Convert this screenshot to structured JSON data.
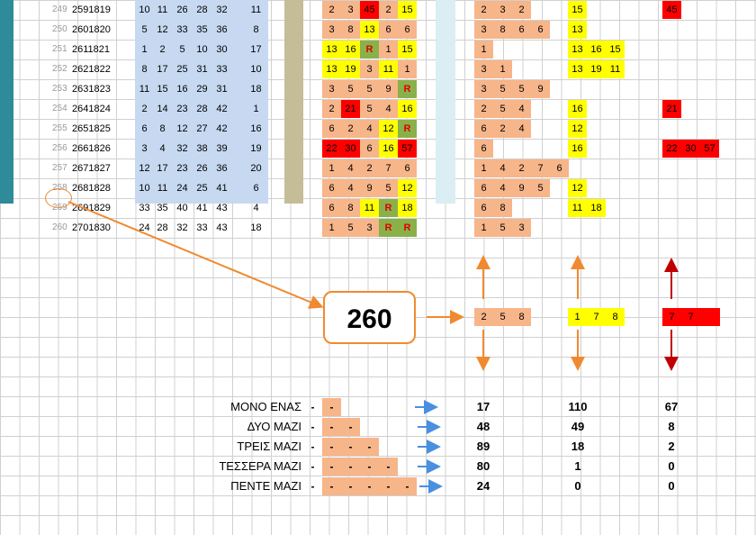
{
  "rows": [
    {
      "n": "249",
      "id": "2591819",
      "nums": [
        "10",
        "11",
        "26",
        "28",
        "32"
      ],
      "cnt": "11",
      "mid": [
        {
          "v": "2",
          "c": "salmon"
        },
        {
          "v": "3",
          "c": "salmon"
        },
        {
          "v": "45",
          "c": "red"
        },
        {
          "v": "2",
          "c": "salmon"
        },
        {
          "v": "15",
          "c": "yellow"
        }
      ],
      "r1": [
        {
          "v": "2",
          "c": "salmon"
        },
        {
          "v": "3",
          "c": "salmon"
        },
        {
          "v": "2",
          "c": "salmon"
        }
      ],
      "r2": [
        {
          "v": "15",
          "c": "yellow"
        }
      ],
      "r3": [
        {
          "v": "45",
          "c": "red"
        }
      ]
    },
    {
      "n": "250",
      "id": "2601820",
      "nums": [
        "5",
        "12",
        "33",
        "35",
        "36"
      ],
      "cnt": "8",
      "mid": [
        {
          "v": "3",
          "c": "salmon"
        },
        {
          "v": "8",
          "c": "salmon"
        },
        {
          "v": "13",
          "c": "yellow"
        },
        {
          "v": "6",
          "c": "salmon"
        },
        {
          "v": "6",
          "c": "salmon"
        }
      ],
      "r1": [
        {
          "v": "3",
          "c": "salmon"
        },
        {
          "v": "8",
          "c": "salmon"
        },
        {
          "v": "6",
          "c": "salmon"
        },
        {
          "v": "6",
          "c": "salmon"
        }
      ],
      "r2": [
        {
          "v": "13",
          "c": "yellow"
        }
      ],
      "r3": []
    },
    {
      "n": "251",
      "id": "2611821",
      "nums": [
        "1",
        "2",
        "5",
        "10",
        "30"
      ],
      "cnt": "17",
      "mid": [
        {
          "v": "13",
          "c": "yellow"
        },
        {
          "v": "16",
          "c": "yellow"
        },
        {
          "v": "R",
          "c": "green"
        },
        {
          "v": "1",
          "c": "salmon"
        },
        {
          "v": "15",
          "c": "yellow"
        }
      ],
      "r1": [
        {
          "v": "1",
          "c": "salmon"
        }
      ],
      "r2": [
        {
          "v": "13",
          "c": "yellow"
        },
        {
          "v": "16",
          "c": "yellow"
        },
        {
          "v": "15",
          "c": "yellow"
        }
      ],
      "r3": []
    },
    {
      "n": "252",
      "id": "2621822",
      "nums": [
        "8",
        "17",
        "25",
        "31",
        "33"
      ],
      "cnt": "10",
      "mid": [
        {
          "v": "13",
          "c": "yellow"
        },
        {
          "v": "19",
          "c": "yellow"
        },
        {
          "v": "3",
          "c": "salmon"
        },
        {
          "v": "11",
          "c": "yellow"
        },
        {
          "v": "1",
          "c": "salmon"
        }
      ],
      "r1": [
        {
          "v": "3",
          "c": "salmon"
        },
        {
          "v": "1",
          "c": "salmon"
        }
      ],
      "r2": [
        {
          "v": "13",
          "c": "yellow"
        },
        {
          "v": "19",
          "c": "yellow"
        },
        {
          "v": "11",
          "c": "yellow"
        }
      ],
      "r3": []
    },
    {
      "n": "253",
      "id": "2631823",
      "nums": [
        "11",
        "15",
        "16",
        "29",
        "31"
      ],
      "cnt": "18",
      "mid": [
        {
          "v": "3",
          "c": "salmon"
        },
        {
          "v": "5",
          "c": "salmon"
        },
        {
          "v": "5",
          "c": "salmon"
        },
        {
          "v": "9",
          "c": "salmon"
        },
        {
          "v": "R",
          "c": "green"
        }
      ],
      "r1": [
        {
          "v": "3",
          "c": "salmon"
        },
        {
          "v": "5",
          "c": "salmon"
        },
        {
          "v": "5",
          "c": "salmon"
        },
        {
          "v": "9",
          "c": "salmon"
        }
      ],
      "r2": [],
      "r3": []
    },
    {
      "n": "254",
      "id": "2641824",
      "nums": [
        "2",
        "14",
        "23",
        "28",
        "42"
      ],
      "cnt": "1",
      "mid": [
        {
          "v": "2",
          "c": "salmon"
        },
        {
          "v": "21",
          "c": "red"
        },
        {
          "v": "5",
          "c": "salmon"
        },
        {
          "v": "4",
          "c": "salmon"
        },
        {
          "v": "16",
          "c": "yellow"
        }
      ],
      "r1": [
        {
          "v": "2",
          "c": "salmon"
        },
        {
          "v": "5",
          "c": "salmon"
        },
        {
          "v": "4",
          "c": "salmon"
        }
      ],
      "r2": [
        {
          "v": "16",
          "c": "yellow"
        }
      ],
      "r3": [
        {
          "v": "21",
          "c": "red"
        }
      ]
    },
    {
      "n": "255",
      "id": "2651825",
      "nums": [
        "6",
        "8",
        "12",
        "27",
        "42"
      ],
      "cnt": "16",
      "mid": [
        {
          "v": "6",
          "c": "salmon"
        },
        {
          "v": "2",
          "c": "salmon"
        },
        {
          "v": "4",
          "c": "salmon"
        },
        {
          "v": "12",
          "c": "yellow"
        },
        {
          "v": "R",
          "c": "green"
        }
      ],
      "r1": [
        {
          "v": "6",
          "c": "salmon"
        },
        {
          "v": "2",
          "c": "salmon"
        },
        {
          "v": "4",
          "c": "salmon"
        }
      ],
      "r2": [
        {
          "v": "12",
          "c": "yellow"
        }
      ],
      "r3": []
    },
    {
      "n": "256",
      "id": "2661826",
      "nums": [
        "3",
        "4",
        "32",
        "38",
        "39"
      ],
      "cnt": "19",
      "mid": [
        {
          "v": "22",
          "c": "red"
        },
        {
          "v": "30",
          "c": "red"
        },
        {
          "v": "6",
          "c": "salmon"
        },
        {
          "v": "16",
          "c": "yellow"
        },
        {
          "v": "57",
          "c": "red"
        }
      ],
      "r1": [
        {
          "v": "6",
          "c": "salmon"
        }
      ],
      "r2": [
        {
          "v": "16",
          "c": "yellow"
        }
      ],
      "r3": [
        {
          "v": "22",
          "c": "red"
        },
        {
          "v": "30",
          "c": "red"
        },
        {
          "v": "57",
          "c": "red"
        }
      ]
    },
    {
      "n": "257",
      "id": "2671827",
      "nums": [
        "12",
        "17",
        "23",
        "26",
        "36"
      ],
      "cnt": "20",
      "mid": [
        {
          "v": "1",
          "c": "salmon"
        },
        {
          "v": "4",
          "c": "salmon"
        },
        {
          "v": "2",
          "c": "salmon"
        },
        {
          "v": "7",
          "c": "salmon"
        },
        {
          "v": "6",
          "c": "salmon"
        }
      ],
      "r1": [
        {
          "v": "1",
          "c": "salmon"
        },
        {
          "v": "4",
          "c": "salmon"
        },
        {
          "v": "2",
          "c": "salmon"
        },
        {
          "v": "7",
          "c": "salmon"
        },
        {
          "v": "6",
          "c": "salmon"
        }
      ],
      "r2": [],
      "r3": []
    },
    {
      "n": "258",
      "id": "2681828",
      "nums": [
        "10",
        "11",
        "24",
        "25",
        "41"
      ],
      "cnt": "6",
      "mid": [
        {
          "v": "6",
          "c": "salmon"
        },
        {
          "v": "4",
          "c": "salmon"
        },
        {
          "v": "9",
          "c": "salmon"
        },
        {
          "v": "5",
          "c": "salmon"
        },
        {
          "v": "12",
          "c": "yellow"
        }
      ],
      "r1": [
        {
          "v": "6",
          "c": "salmon"
        },
        {
          "v": "4",
          "c": "salmon"
        },
        {
          "v": "9",
          "c": "salmon"
        },
        {
          "v": "5",
          "c": "salmon"
        }
      ],
      "r2": [
        {
          "v": "12",
          "c": "yellow"
        }
      ],
      "r3": []
    },
    {
      "n": "259",
      "id": "2691829",
      "nums": [
        "33",
        "35",
        "40",
        "41",
        "43"
      ],
      "cnt": "4",
      "mid": [
        {
          "v": "6",
          "c": "salmon"
        },
        {
          "v": "8",
          "c": "salmon"
        },
        {
          "v": "11",
          "c": "yellow"
        },
        {
          "v": "R",
          "c": "green"
        },
        {
          "v": "18",
          "c": "yellow"
        }
      ],
      "r1": [
        {
          "v": "6",
          "c": "salmon"
        },
        {
          "v": "8",
          "c": "salmon"
        }
      ],
      "r2": [
        {
          "v": "11",
          "c": "yellow"
        },
        {
          "v": "18",
          "c": "yellow"
        }
      ],
      "r3": []
    },
    {
      "n": "260",
      "id": "2701830",
      "nums": [
        "24",
        "28",
        "32",
        "33",
        "43"
      ],
      "cnt": "18",
      "mid": [
        {
          "v": "1",
          "c": "salmon"
        },
        {
          "v": "5",
          "c": "salmon"
        },
        {
          "v": "3",
          "c": "salmon"
        },
        {
          "v": "R",
          "c": "green"
        },
        {
          "v": "R",
          "c": "green"
        }
      ],
      "r1": [
        {
          "v": "1",
          "c": "salmon"
        },
        {
          "v": "5",
          "c": "salmon"
        },
        {
          "v": "3",
          "c": "salmon"
        }
      ],
      "r2": [],
      "r3": []
    }
  ],
  "callout": {
    "big_number": "260"
  },
  "predict": {
    "group1": [
      "2",
      "5",
      "8"
    ],
    "group2": [
      "1",
      "7",
      "8"
    ],
    "group3": [
      "7",
      "7"
    ]
  },
  "summary": [
    {
      "label": "ΜΟΝΟ ΕΝΑΣ",
      "prefix": "-",
      "dashes": 1,
      "a": "17",
      "b": "110",
      "c": "67"
    },
    {
      "label": "ΔΥΟ ΜΑΖΙ",
      "prefix": "-",
      "dashes": 2,
      "a": "48",
      "b": "49",
      "c": "8"
    },
    {
      "label": "ΤΡΕΙΣ ΜΑΖΙ",
      "prefix": "-",
      "dashes": 3,
      "a": "89",
      "b": "18",
      "c": "2"
    },
    {
      "label": "ΤΕΣΣΕΡΑ ΜΑΖΙ",
      "prefix": "-",
      "dashes": 4,
      "a": "80",
      "b": "1",
      "c": "0"
    },
    {
      "label": "ΠΕΝΤΕ ΜΑΖΙ",
      "prefix": "-",
      "dashes": 5,
      "a": "24",
      "b": "0",
      "c": "0"
    }
  ],
  "colors": {
    "teal": "#2f8a9a",
    "blue_band": "#c6d9f1",
    "khaki": "#c4bd97",
    "light_cyan": "#daeef3",
    "salmon": "#f7b58a",
    "yellow": "#ffff00",
    "red": "#ff0000",
    "green": "#8ab04a",
    "orange_arrow": "#f08a30",
    "red_arrow": "#c00000",
    "blue_arrow": "#4a8fe0"
  }
}
